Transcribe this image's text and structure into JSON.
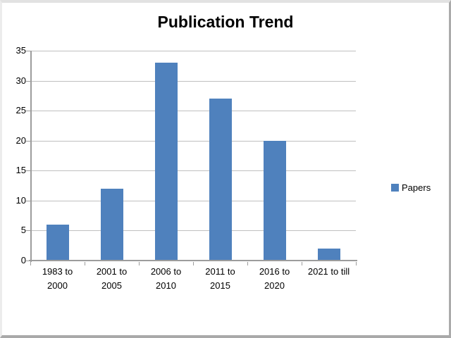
{
  "colors": {
    "bar": "#4f81bd",
    "gridline": "#c0c0c0",
    "axis": "#9c9c9c",
    "text": "#000000",
    "background": "#ffffff"
  },
  "chart_data": {
    "type": "bar",
    "title": "Publication Trend",
    "categories": [
      "1983 to 2000",
      "2001 to 2005",
      "2006 to 2010",
      "2011 to 2015",
      "2016 to 2020",
      "2021 to till"
    ],
    "category_labels": [
      [
        "1983 to",
        "2000"
      ],
      [
        "2001 to",
        "2005"
      ],
      [
        "2006 to",
        "2010"
      ],
      [
        "2011 to",
        "2015"
      ],
      [
        "2016 to",
        "2020"
      ],
      [
        "2021 to till"
      ]
    ],
    "series": [
      {
        "name": "Papers",
        "values": [
          6,
          12,
          33,
          27,
          20,
          2
        ],
        "color": "#4f81bd"
      }
    ],
    "xlabel": "",
    "ylabel": "",
    "ylim": [
      0,
      35
    ],
    "ytick_interval": 5,
    "yticks": [
      0,
      5,
      10,
      15,
      20,
      25,
      30,
      35
    ],
    "grid": true,
    "legend_position": "right"
  }
}
